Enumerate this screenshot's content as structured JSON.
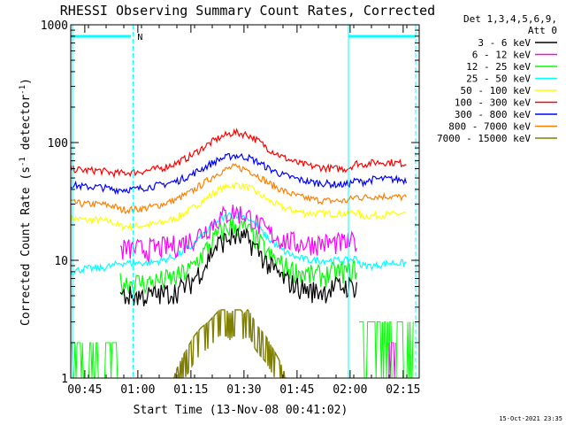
{
  "chart_data": {
    "type": "line",
    "title": "RHESSI Observing Summary Count Rates, Corrected",
    "xlabel": "Start Time (13-Nov-08 00:41:02)",
    "ylabel": "Corrected Count Rate (s",
    "ylabel_sup1": "-1",
    "ylabel_mid": " detector",
    "ylabel_sup2": "-1",
    "ylabel_end": ")",
    "yscale": "log",
    "ylim": [
      1,
      1000
    ],
    "yticks": [
      1,
      10,
      100,
      1000
    ],
    "ytick_labels": [
      "1",
      "10",
      "100",
      "1000"
    ],
    "x_unit": "minutes after 00:41:02",
    "xlim": [
      0,
      98.5
    ],
    "xticks": [
      3.97,
      18.97,
      33.97,
      48.97,
      63.97,
      78.97,
      93.97
    ],
    "xtick_labels": [
      "00:45",
      "01:00",
      "01:15",
      "01:30",
      "01:45",
      "02:00",
      "02:15"
    ],
    "legend_header": [
      "Det 1,3,4,5,6,9,",
      "Att 0"
    ],
    "flag_label": "N",
    "attenuator_bars": [
      [
        0,
        17
      ],
      [
        78.5,
        97.5
      ]
    ],
    "night_markers": [
      0.5,
      17.6,
      78.5,
      97.5
    ],
    "series": [
      {
        "name": "3 - 6 keV",
        "color": "#000000",
        "t": [
          14,
          18,
          22,
          26,
          30,
          34,
          38,
          40,
          42,
          46,
          50,
          53,
          56,
          60,
          64,
          68,
          72,
          75,
          78,
          81
        ],
        "values": [
          5,
          5,
          5,
          5.2,
          5.5,
          6.5,
          9,
          12,
          14,
          16,
          15,
          12,
          9,
          7,
          6,
          5.5,
          5.5,
          6,
          6,
          6
        ]
      },
      {
        "name": "6 - 12 keV",
        "color": "#ff00ff",
        "t": [
          14,
          18,
          22,
          26,
          30,
          34,
          38,
          42,
          46,
          50,
          53,
          56,
          60,
          64,
          68,
          72,
          75,
          78,
          81
        ],
        "values": [
          12.5,
          12.5,
          12.5,
          13,
          13.5,
          15,
          18,
          23,
          26,
          24,
          20,
          17,
          15,
          14,
          14,
          14,
          14,
          14,
          14.5
        ]
      },
      {
        "name": "12 - 25 keV",
        "color": "#00ff00",
        "t": [
          14,
          18,
          22,
          26,
          30,
          34,
          38,
          42,
          46,
          50,
          53,
          56,
          60,
          64,
          68,
          72,
          75,
          78,
          81
        ],
        "values": [
          6.5,
          6.5,
          6.5,
          6.8,
          7.2,
          8.5,
          12,
          17,
          20,
          18,
          14.5,
          11,
          9,
          8,
          7.5,
          7.5,
          8,
          8,
          8.5
        ]
      },
      {
        "name": "25 - 50 keV",
        "color": "#00ffff",
        "t": [
          0,
          4,
          8,
          12,
          14,
          18,
          22,
          26,
          30,
          34,
          38,
          42,
          46,
          50,
          53,
          56,
          60,
          64,
          68,
          72,
          75,
          78,
          81,
          82,
          86,
          90,
          95
        ],
        "values": [
          8,
          8.5,
          8.5,
          9,
          9.5,
          9.5,
          9.5,
          10,
          11,
          13,
          17,
          22,
          25,
          23,
          19,
          15,
          12,
          10.5,
          10,
          10,
          10,
          10,
          10.5,
          9,
          9,
          9.5,
          9.5
        ]
      },
      {
        "name": "50 - 100 keV",
        "color": "#ffff00",
        "t": [
          0,
          4,
          8,
          12,
          14,
          18,
          22,
          26,
          30,
          34,
          38,
          42,
          46,
          50,
          53,
          56,
          60,
          64,
          68,
          72,
          75,
          78,
          81,
          82,
          86,
          90,
          95
        ],
        "values": [
          23,
          22,
          22,
          21,
          19.5,
          19.5,
          20,
          21,
          23,
          27,
          33,
          40,
          44,
          42,
          37,
          32,
          28,
          26,
          25,
          25,
          25,
          25,
          26,
          23.5,
          24,
          24.5,
          25
        ]
      },
      {
        "name": "100 - 300 keV",
        "color": "#ff0000",
        "t": [
          0,
          4,
          8,
          12,
          14,
          18,
          22,
          26,
          30,
          34,
          38,
          42,
          46,
          50,
          53,
          56,
          60,
          64,
          68,
          72,
          75,
          78,
          81,
          82,
          86,
          90,
          95
        ],
        "values": [
          60,
          58,
          58,
          55,
          55,
          56,
          58,
          61,
          67,
          77,
          93,
          110,
          122,
          117,
          103,
          88,
          75,
          67,
          63,
          61,
          60,
          60,
          67,
          65,
          68,
          68,
          66
        ]
      },
      {
        "name": "300 - 800 keV",
        "color": "#0000ff",
        "t": [
          0,
          4,
          8,
          12,
          14,
          18,
          22,
          26,
          30,
          34,
          38,
          42,
          46,
          50,
          53,
          56,
          60,
          64,
          68,
          72,
          75,
          78,
          81,
          82,
          86,
          90,
          95
        ],
        "values": [
          44,
          42,
          42,
          40,
          40,
          40,
          42,
          44,
          47,
          53,
          62,
          72,
          78,
          75,
          68,
          60,
          53,
          49,
          46,
          45,
          44,
          44,
          48,
          46,
          49,
          49,
          48
        ]
      },
      {
        "name": "800 - 7000 keV",
        "color": "#ff8000",
        "t": [
          0,
          4,
          8,
          12,
          14,
          18,
          22,
          26,
          30,
          34,
          38,
          42,
          46,
          50,
          53,
          56,
          60,
          64,
          68,
          72,
          75,
          78,
          81,
          82,
          86,
          90,
          95
        ],
        "values": [
          31,
          30,
          30,
          29,
          27,
          27,
          28,
          30,
          33,
          38,
          46,
          56,
          62,
          59,
          52,
          45,
          39,
          35,
          33,
          32,
          32,
          32,
          35,
          34,
          35,
          35,
          34
        ]
      },
      {
        "name": "7000 - 15000 keV",
        "color": "#808000",
        "t": [
          29,
          31,
          33,
          35,
          37,
          39,
          41,
          42,
          43,
          44,
          45,
          46,
          47,
          48,
          49,
          50,
          51,
          52,
          53,
          55,
          57,
          59,
          61
        ],
        "values": [
          1,
          1.4,
          1.8,
          2.3,
          2.7,
          3,
          3.5,
          3.8,
          3.8,
          3.8,
          3.5,
          3.8,
          3.8,
          3.8,
          3.5,
          3.8,
          3.5,
          3,
          2.7,
          2.3,
          1.8,
          1.4,
          1
        ]
      }
    ]
  },
  "timestamp": "15-Oct-2021 23:35"
}
